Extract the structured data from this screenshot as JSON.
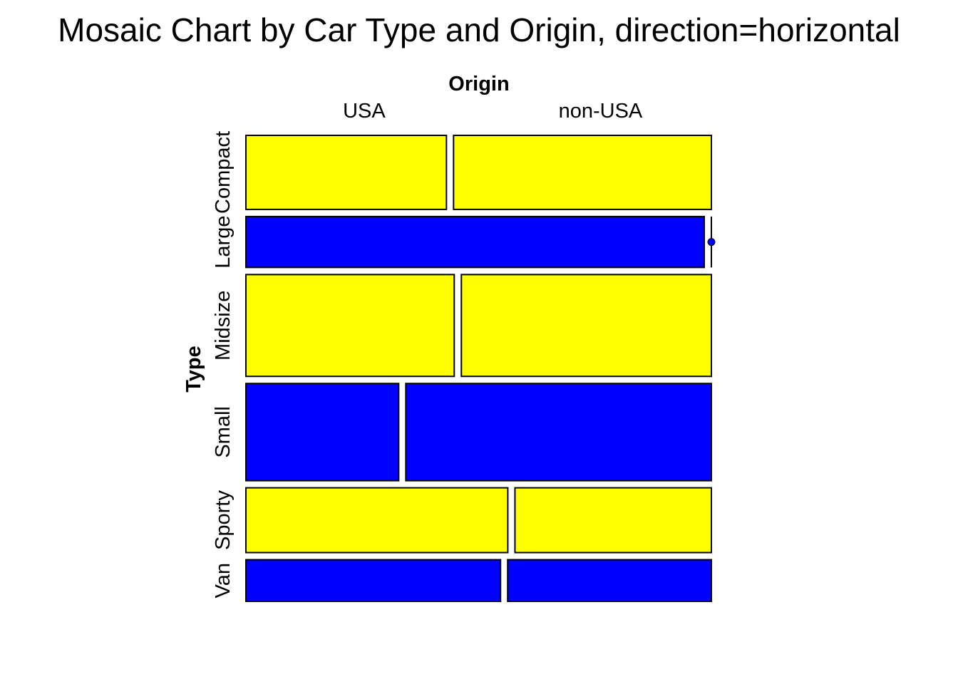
{
  "chart_data": {
    "type": "mosaic",
    "title": "Mosaic Chart by Car Type and Origin, direction=horizontal",
    "xlabel": "Origin",
    "ylabel": "Type",
    "x_categories": [
      "USA",
      "non-USA"
    ],
    "y_categories": [
      "Compact",
      "Large",
      "Midsize",
      "Small",
      "Sporty",
      "Van"
    ],
    "counts": {
      "Compact": [
        7,
        9
      ],
      "Large": [
        11,
        0
      ],
      "Midsize": [
        10,
        12
      ],
      "Small": [
        7,
        14
      ],
      "Sporty": [
        8,
        6
      ],
      "Van": [
        5,
        4
      ]
    },
    "row_colors": [
      "#FFFF00",
      "#0000FF",
      "#FFFF00",
      "#0000FF",
      "#FFFF00",
      "#0000FF"
    ],
    "stroke_color": "#000000",
    "direction": "horizontal"
  }
}
